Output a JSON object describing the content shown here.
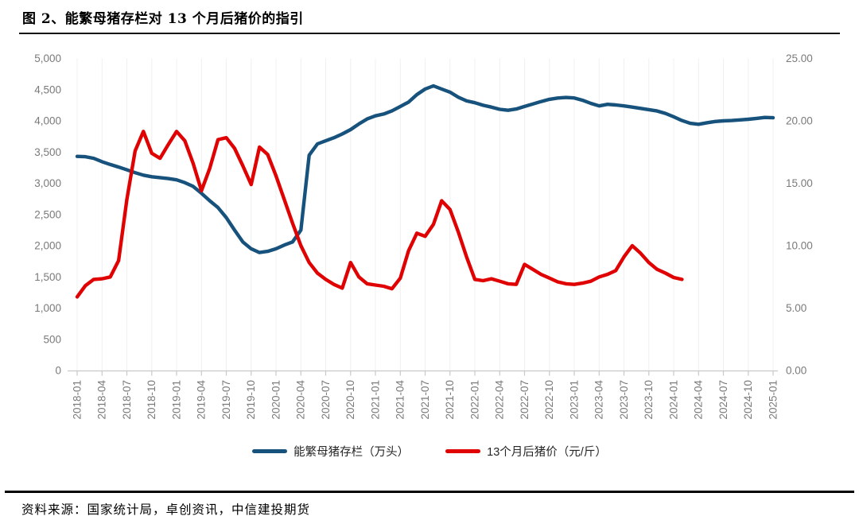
{
  "title": "图 2、能繁母猪存栏对 13 个月后猪价的指引",
  "source": "资料来源：国家统计局，卓创资讯，中信建投期货",
  "chart_data": {
    "type": "line",
    "title": "能繁母猪存栏对13个月后猪价的指引",
    "legend_position": "bottom",
    "grid": "faint-vertical-quarterly",
    "colors": {
      "sow_line": "#17527D",
      "price_line": "#E00202",
      "axis_text": "#7A7A7A",
      "axis_line": "#C8C8C8",
      "gridline": "#F0F0F0"
    },
    "left_axis": {
      "min": 0,
      "max": 5000,
      "step": 500,
      "ticks": [
        "0",
        "500",
        "1,000",
        "1,500",
        "2,000",
        "2,500",
        "3,000",
        "3,500",
        "4,000",
        "4,500",
        "5,000"
      ]
    },
    "right_axis": {
      "min": 0,
      "max": 25,
      "step": 5,
      "ticks": [
        "0.00",
        "5.00",
        "10.00",
        "15.00",
        "20.00",
        "25.00"
      ]
    },
    "x_tick_labels": [
      "2018-01",
      "2018-04",
      "2018-07",
      "2018-10",
      "2019-01",
      "2019-04",
      "2019-07",
      "2019-10",
      "2020-01",
      "2020-04",
      "2020-07",
      "2020-10",
      "2021-01",
      "2021-04",
      "2021-07",
      "2021-10",
      "2022-01",
      "2022-04",
      "2022-07",
      "2022-10",
      "2023-01",
      "2023-04",
      "2023-07",
      "2023-10",
      "2024-01",
      "2024-04",
      "2024-07",
      "2024-10",
      "2025-01"
    ],
    "x": [
      "2018-01",
      "2018-02",
      "2018-03",
      "2018-04",
      "2018-05",
      "2018-06",
      "2018-07",
      "2018-08",
      "2018-09",
      "2018-10",
      "2018-11",
      "2018-12",
      "2019-01",
      "2019-02",
      "2019-03",
      "2019-04",
      "2019-05",
      "2019-06",
      "2019-07",
      "2019-08",
      "2019-09",
      "2019-10",
      "2019-11",
      "2019-12",
      "2020-01",
      "2020-02",
      "2020-03",
      "2020-04",
      "2020-05",
      "2020-06",
      "2020-07",
      "2020-08",
      "2020-09",
      "2020-10",
      "2020-11",
      "2020-12",
      "2021-01",
      "2021-02",
      "2021-03",
      "2021-04",
      "2021-05",
      "2021-06",
      "2021-07",
      "2021-08",
      "2021-09",
      "2021-10",
      "2021-11",
      "2021-12",
      "2022-01",
      "2022-02",
      "2022-03",
      "2022-04",
      "2022-05",
      "2022-06",
      "2022-07",
      "2022-08",
      "2022-09",
      "2022-10",
      "2022-11",
      "2022-12",
      "2023-01",
      "2023-02",
      "2023-03",
      "2023-04",
      "2023-05",
      "2023-06",
      "2023-07",
      "2023-08",
      "2023-09",
      "2023-10",
      "2023-11",
      "2023-12",
      "2024-01",
      "2024-02",
      "2024-03",
      "2024-04",
      "2024-05",
      "2024-06",
      "2024-07",
      "2024-08",
      "2024-09",
      "2024-10",
      "2024-11",
      "2024-12",
      "2025-01"
    ],
    "series": [
      {
        "name": "能繁母猪存栏（万头）",
        "axis": "left",
        "color": "#17527D",
        "values": [
          3430,
          3425,
          3400,
          3345,
          3300,
          3260,
          3215,
          3170,
          3130,
          3105,
          3090,
          3075,
          3055,
          3010,
          2950,
          2840,
          2720,
          2610,
          2450,
          2250,
          2060,
          1950,
          1890,
          1910,
          1950,
          2010,
          2060,
          2250,
          3450,
          3630,
          3680,
          3730,
          3790,
          3860,
          3950,
          4030,
          4080,
          4110,
          4160,
          4230,
          4300,
          4420,
          4510,
          4560,
          4510,
          4460,
          4380,
          4320,
          4290,
          4250,
          4220,
          4185,
          4170,
          4190,
          4230,
          4270,
          4310,
          4345,
          4365,
          4375,
          4367,
          4330,
          4280,
          4240,
          4265,
          4255,
          4240,
          4220,
          4200,
          4180,
          4158,
          4120,
          4065,
          4005,
          3960,
          3945,
          3970,
          3990,
          4000,
          4005,
          4015,
          4025,
          4040,
          4055,
          4050
        ]
      },
      {
        "name": "13个月后猪价（元/斤）",
        "axis": "right",
        "color": "#E00202",
        "values": [
          5.9,
          6.8,
          7.3,
          7.35,
          7.5,
          8.8,
          13.7,
          17.6,
          19.15,
          17.4,
          17.0,
          18.1,
          19.15,
          18.4,
          16.6,
          14.4,
          16.2,
          18.5,
          18.65,
          17.8,
          16.4,
          14.9,
          17.9,
          17.3,
          15.6,
          13.7,
          11.8,
          10.0,
          8.65,
          7.8,
          7.3,
          6.9,
          6.6,
          8.65,
          7.5,
          6.95,
          6.85,
          6.75,
          6.55,
          7.4,
          9.6,
          11.0,
          10.75,
          11.7,
          13.6,
          12.9,
          11.1,
          9.1,
          7.3,
          7.2,
          7.35,
          7.15,
          6.95,
          6.9,
          8.5,
          8.1,
          7.7,
          7.4,
          7.1,
          6.95,
          6.9,
          7.0,
          7.15,
          7.5,
          7.7,
          8.0,
          9.1,
          10.0,
          9.4,
          8.65,
          8.1,
          7.8,
          7.45,
          7.3
        ]
      }
    ]
  }
}
